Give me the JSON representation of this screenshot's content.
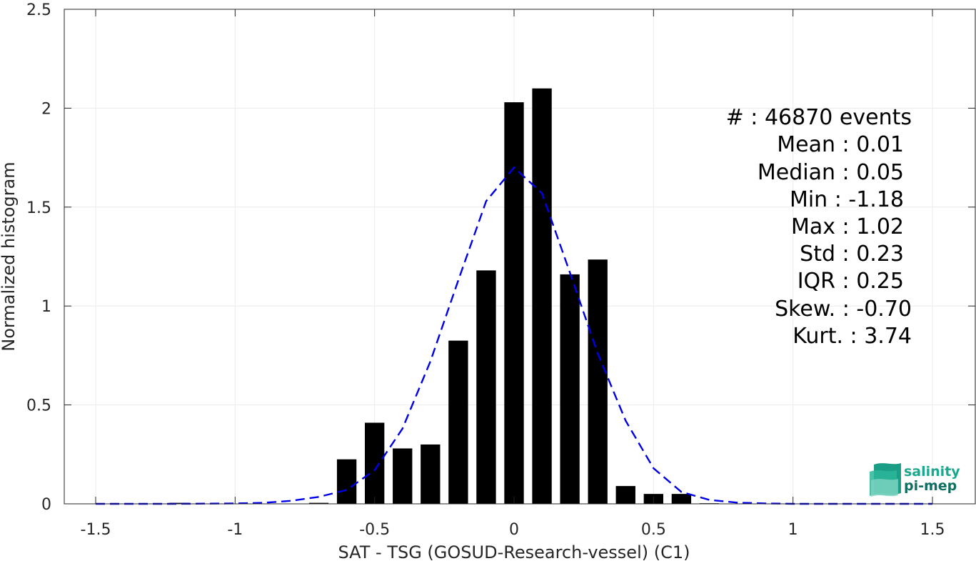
{
  "chart_data": {
    "type": "bar",
    "xlabel": "SAT - TSG (GOSUD-Research-vessel) (C1)",
    "ylabel": "Normalized histogram",
    "xlim": [
      -1.5,
      1.5
    ],
    "ylim": [
      0,
      2.5
    ],
    "grid": true,
    "x_ticks": [
      -1.5,
      -1,
      -0.5,
      0,
      0.5,
      1,
      1.5
    ],
    "x_tick_labels": [
      "-1.5",
      "-1",
      "-0.5",
      "0",
      "0.5",
      "1",
      "1.5"
    ],
    "y_ticks": [
      0,
      0.5,
      1,
      1.5,
      2,
      2.5
    ],
    "y_tick_labels": [
      "0",
      "0.5",
      "1",
      "1.5",
      "2",
      "2.5"
    ],
    "bar_width": 0.07,
    "bar_color": "#000000",
    "bins": [
      {
        "x": -1.2,
        "value": 0.005
      },
      {
        "x": -0.7,
        "value": 0.005
      },
      {
        "x": -0.6,
        "value": 0.225
      },
      {
        "x": -0.5,
        "value": 0.41
      },
      {
        "x": -0.4,
        "value": 0.28
      },
      {
        "x": -0.3,
        "value": 0.3
      },
      {
        "x": -0.2,
        "value": 0.825
      },
      {
        "x": -0.1,
        "value": 1.18
      },
      {
        "x": 0.0,
        "value": 2.03
      },
      {
        "x": 0.1,
        "value": 2.1
      },
      {
        "x": 0.2,
        "value": 1.16
      },
      {
        "x": 0.3,
        "value": 1.235
      },
      {
        "x": 0.4,
        "value": 0.09
      },
      {
        "x": 0.5,
        "value": 0.05
      },
      {
        "x": 0.6,
        "value": 0.05
      },
      {
        "x": 0.7,
        "value": 0.003
      }
    ],
    "fit_curve": {
      "style": "dashed",
      "color": "#0000e6",
      "x": [
        -1.5,
        -1.2,
        -1.0,
        -0.9,
        -0.8,
        -0.7,
        -0.6,
        -0.5,
        -0.4,
        -0.3,
        -0.2,
        -0.1,
        0.0,
        0.1,
        0.2,
        0.3,
        0.4,
        0.5,
        0.6,
        0.7,
        0.8,
        0.9,
        1.0,
        1.2,
        1.5
      ],
      "y": [
        0,
        0,
        0.002,
        0.005,
        0.015,
        0.035,
        0.07,
        0.17,
        0.38,
        0.72,
        1.13,
        1.53,
        1.7,
        1.57,
        1.17,
        0.76,
        0.42,
        0.18,
        0.06,
        0.02,
        0.006,
        0.002,
        0,
        0,
        0
      ]
    }
  },
  "stats": [
    {
      "label": "#  : 46870 events"
    },
    {
      "label": "Mean : 0.01"
    },
    {
      "label": "Median : 0.05"
    },
    {
      "label": "Min : -1.18"
    },
    {
      "label": "Max : 1.02"
    },
    {
      "label": "Std : 0.23"
    },
    {
      "label": "IQR : 0.25"
    },
    {
      "label": "Skew. : -0.70"
    },
    {
      "label": "Kurt. : 3.74"
    }
  ],
  "logo": {
    "line1": "salinity",
    "line2": "pi-mep",
    "color1": "#19a98f",
    "color2": "#0e6f62"
  },
  "colors": {
    "axis": "#262626",
    "grid": "#ebebeb"
  }
}
